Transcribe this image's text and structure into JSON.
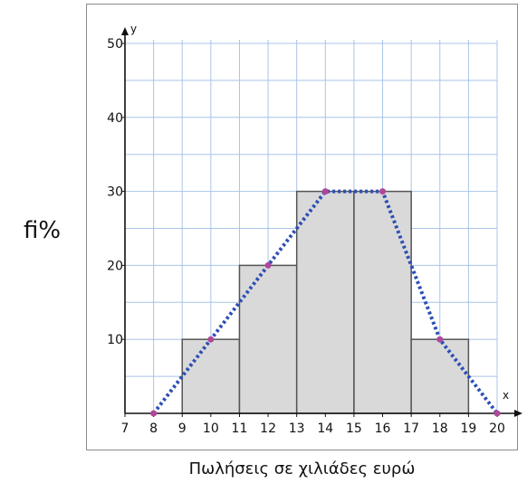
{
  "chart_data": {
    "type": "bar",
    "subtype": "histogram-with-frequency-polygon",
    "ylabel": "fi%",
    "xlabel": "Πωλήσεις σε χιλιάδες ευρώ",
    "x_axis_symbol": "x",
    "y_axis_symbol": "y",
    "xlim": [
      7,
      20
    ],
    "ylim": [
      0,
      50
    ],
    "x_ticks": [
      7,
      8,
      9,
      10,
      11,
      12,
      13,
      14,
      15,
      16,
      17,
      18,
      19,
      20
    ],
    "y_ticks": [
      10,
      20,
      30,
      40,
      50
    ],
    "grid": true,
    "bars": [
      {
        "x0": 9,
        "x1": 11,
        "value": 10
      },
      {
        "x0": 11,
        "x1": 13,
        "value": 20
      },
      {
        "x0": 13,
        "x1": 15,
        "value": 30
      },
      {
        "x0": 15,
        "x1": 17,
        "value": 30
      },
      {
        "x0": 17,
        "x1": 19,
        "value": 10
      }
    ],
    "polygon": {
      "x": [
        8,
        10,
        12,
        14,
        16,
        18,
        20
      ],
      "y": [
        0,
        10,
        20,
        30,
        30,
        10,
        0
      ]
    },
    "colors": {
      "bar_fill": "#d9d9d9",
      "bar_stroke": "#555555",
      "grid": "#a9c4e8",
      "polygon": "#2c4fb5",
      "points": "#b0479a"
    }
  }
}
